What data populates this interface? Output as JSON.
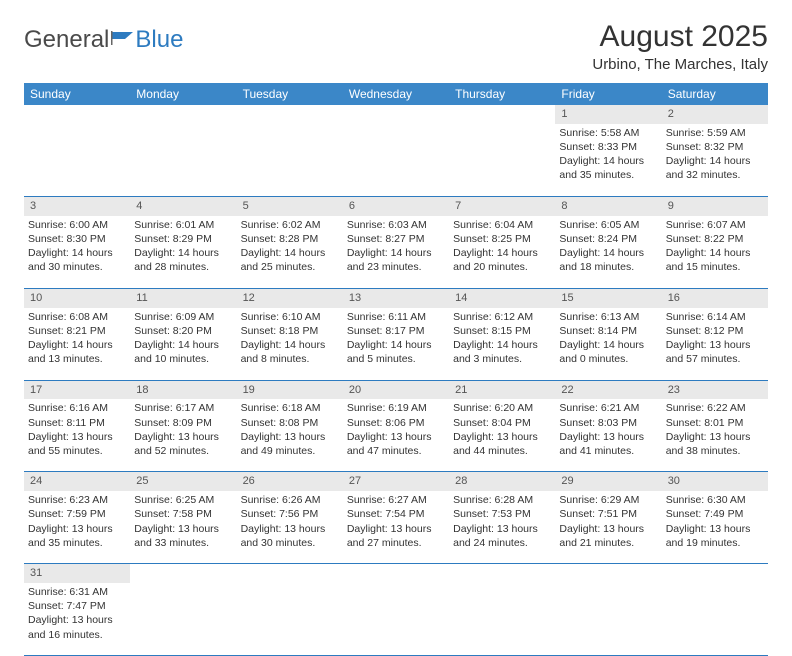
{
  "logo": {
    "text1": "General",
    "text2": "Blue"
  },
  "title": "August 2025",
  "location": "Urbino, The Marches, Italy",
  "columns": [
    "Sunday",
    "Monday",
    "Tuesday",
    "Wednesday",
    "Thursday",
    "Friday",
    "Saturday"
  ],
  "colors": {
    "header_bg": "#3b87c8",
    "header_fg": "#ffffff",
    "daynum_bg": "#e9e9e9",
    "rule": "#2d7bc0",
    "text": "#333333"
  },
  "weeks": [
    [
      null,
      null,
      null,
      null,
      null,
      {
        "n": "1",
        "sr": "5:58 AM",
        "ss": "8:33 PM",
        "dl": "14 hours and 35 minutes."
      },
      {
        "n": "2",
        "sr": "5:59 AM",
        "ss": "8:32 PM",
        "dl": "14 hours and 32 minutes."
      }
    ],
    [
      {
        "n": "3",
        "sr": "6:00 AM",
        "ss": "8:30 PM",
        "dl": "14 hours and 30 minutes."
      },
      {
        "n": "4",
        "sr": "6:01 AM",
        "ss": "8:29 PM",
        "dl": "14 hours and 28 minutes."
      },
      {
        "n": "5",
        "sr": "6:02 AM",
        "ss": "8:28 PM",
        "dl": "14 hours and 25 minutes."
      },
      {
        "n": "6",
        "sr": "6:03 AM",
        "ss": "8:27 PM",
        "dl": "14 hours and 23 minutes."
      },
      {
        "n": "7",
        "sr": "6:04 AM",
        "ss": "8:25 PM",
        "dl": "14 hours and 20 minutes."
      },
      {
        "n": "8",
        "sr": "6:05 AM",
        "ss": "8:24 PM",
        "dl": "14 hours and 18 minutes."
      },
      {
        "n": "9",
        "sr": "6:07 AM",
        "ss": "8:22 PM",
        "dl": "14 hours and 15 minutes."
      }
    ],
    [
      {
        "n": "10",
        "sr": "6:08 AM",
        "ss": "8:21 PM",
        "dl": "14 hours and 13 minutes."
      },
      {
        "n": "11",
        "sr": "6:09 AM",
        "ss": "8:20 PM",
        "dl": "14 hours and 10 minutes."
      },
      {
        "n": "12",
        "sr": "6:10 AM",
        "ss": "8:18 PM",
        "dl": "14 hours and 8 minutes."
      },
      {
        "n": "13",
        "sr": "6:11 AM",
        "ss": "8:17 PM",
        "dl": "14 hours and 5 minutes."
      },
      {
        "n": "14",
        "sr": "6:12 AM",
        "ss": "8:15 PM",
        "dl": "14 hours and 3 minutes."
      },
      {
        "n": "15",
        "sr": "6:13 AM",
        "ss": "8:14 PM",
        "dl": "14 hours and 0 minutes."
      },
      {
        "n": "16",
        "sr": "6:14 AM",
        "ss": "8:12 PM",
        "dl": "13 hours and 57 minutes."
      }
    ],
    [
      {
        "n": "17",
        "sr": "6:16 AM",
        "ss": "8:11 PM",
        "dl": "13 hours and 55 minutes."
      },
      {
        "n": "18",
        "sr": "6:17 AM",
        "ss": "8:09 PM",
        "dl": "13 hours and 52 minutes."
      },
      {
        "n": "19",
        "sr": "6:18 AM",
        "ss": "8:08 PM",
        "dl": "13 hours and 49 minutes."
      },
      {
        "n": "20",
        "sr": "6:19 AM",
        "ss": "8:06 PM",
        "dl": "13 hours and 47 minutes."
      },
      {
        "n": "21",
        "sr": "6:20 AM",
        "ss": "8:04 PM",
        "dl": "13 hours and 44 minutes."
      },
      {
        "n": "22",
        "sr": "6:21 AM",
        "ss": "8:03 PM",
        "dl": "13 hours and 41 minutes."
      },
      {
        "n": "23",
        "sr": "6:22 AM",
        "ss": "8:01 PM",
        "dl": "13 hours and 38 minutes."
      }
    ],
    [
      {
        "n": "24",
        "sr": "6:23 AM",
        "ss": "7:59 PM",
        "dl": "13 hours and 35 minutes."
      },
      {
        "n": "25",
        "sr": "6:25 AM",
        "ss": "7:58 PM",
        "dl": "13 hours and 33 minutes."
      },
      {
        "n": "26",
        "sr": "6:26 AM",
        "ss": "7:56 PM",
        "dl": "13 hours and 30 minutes."
      },
      {
        "n": "27",
        "sr": "6:27 AM",
        "ss": "7:54 PM",
        "dl": "13 hours and 27 minutes."
      },
      {
        "n": "28",
        "sr": "6:28 AM",
        "ss": "7:53 PM",
        "dl": "13 hours and 24 minutes."
      },
      {
        "n": "29",
        "sr": "6:29 AM",
        "ss": "7:51 PM",
        "dl": "13 hours and 21 minutes."
      },
      {
        "n": "30",
        "sr": "6:30 AM",
        "ss": "7:49 PM",
        "dl": "13 hours and 19 minutes."
      }
    ],
    [
      {
        "n": "31",
        "sr": "6:31 AM",
        "ss": "7:47 PM",
        "dl": "13 hours and 16 minutes."
      },
      null,
      null,
      null,
      null,
      null,
      null
    ]
  ],
  "labels": {
    "sunrise": "Sunrise:",
    "sunset": "Sunset:",
    "daylight": "Daylight:"
  }
}
